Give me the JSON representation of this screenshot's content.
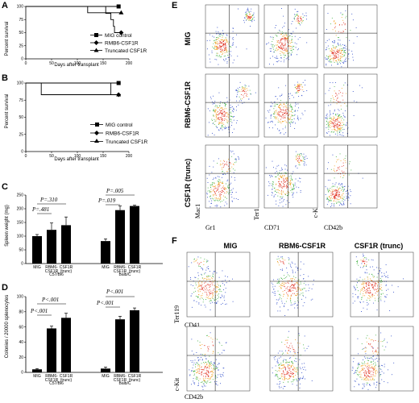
{
  "chart_data": [
    {
      "panel": "A",
      "type": "line",
      "ylabel": "Percent survival",
      "xlabel": "Days after transplant",
      "xticks": [
        0,
        50,
        100,
        150,
        200
      ],
      "yticks": [
        0,
        25,
        50,
        75,
        100
      ],
      "xlim": [
        0,
        200
      ],
      "ylim": [
        0,
        100
      ],
      "series": [
        {
          "name": "MIG control",
          "marker": "square",
          "points": [
            [
              0,
              100
            ],
            [
              180,
              100
            ]
          ]
        },
        {
          "name": "RMB6-CSF1R",
          "marker": "diamond",
          "points": [
            [
              0,
              100
            ],
            [
              155,
              100
            ],
            [
              155,
              87
            ],
            [
              165,
              87
            ],
            [
              165,
              75
            ],
            [
              170,
              75
            ],
            [
              170,
              62
            ],
            [
              172,
              62
            ],
            [
              172,
              50
            ],
            [
              185,
              50
            ]
          ]
        },
        {
          "name": "Truncated CSF1R",
          "marker": "triangle",
          "points": [
            [
              0,
              100
            ],
            [
              120,
              100
            ],
            [
              120,
              88
            ],
            [
              185,
              88
            ]
          ]
        }
      ]
    },
    {
      "panel": "B",
      "type": "line",
      "ylabel": "Percent survival",
      "xlabel": "Days after transplant",
      "xticks": [
        0,
        50,
        100,
        150,
        200
      ],
      "yticks": [
        0,
        25,
        50,
        75,
        100
      ],
      "xlim": [
        0,
        200
      ],
      "ylim": [
        0,
        100
      ],
      "series": [
        {
          "name": "MIG control",
          "marker": "square",
          "points": [
            [
              0,
              100
            ],
            [
              180,
              100
            ]
          ]
        },
        {
          "name": "RMB6-CSF1R",
          "marker": "diamond",
          "points": [
            [
              0,
              100
            ],
            [
              165,
              100
            ],
            [
              165,
              83
            ],
            [
              180,
              83
            ]
          ]
        },
        {
          "name": "Truncated CSF1R",
          "marker": "triangle",
          "points": [
            [
              0,
              100
            ],
            [
              30,
              100
            ],
            [
              30,
              83
            ],
            [
              180,
              83
            ]
          ]
        }
      ]
    },
    {
      "panel": "C",
      "type": "bar",
      "ylabel": "Spleen weight (mg)",
      "yticks": [
        0,
        50,
        100,
        150,
        200,
        250
      ],
      "ylim": [
        0,
        250
      ],
      "groups": [
        "C57/Bl6",
        "Balb/C"
      ],
      "categories": [
        "MIG",
        "RBM6-CSF1R",
        "CSF1R (trunc)"
      ],
      "series": [
        {
          "group": "C57/Bl6",
          "values": [
            100,
            123,
            140
          ],
          "errors": [
            6,
            25,
            30
          ]
        },
        {
          "group": "Balb/C",
          "values": [
            82,
            195,
            210
          ],
          "errors": [
            8,
            15,
            3
          ]
        }
      ],
      "annotations": [
        "P=.310",
        "P=.481",
        "P=.005",
        "P=.019"
      ]
    },
    {
      "panel": "D",
      "type": "bar",
      "ylabel": "Colonies / 20000 splenocytes",
      "yticks": [
        0,
        20,
        40,
        60,
        80,
        100
      ],
      "ylim": [
        0,
        100
      ],
      "groups": [
        "C57/Bl6",
        "Balb/C"
      ],
      "categories": [
        "MIG",
        "RBM6-CSF1R",
        "CSF1R (trunc)"
      ],
      "series": [
        {
          "group": "C57/Bl6",
          "values": [
            4,
            58,
            72
          ],
          "errors": [
            1,
            3,
            6
          ]
        },
        {
          "group": "Balb/C",
          "values": [
            5,
            70,
            82
          ],
          "errors": [
            2,
            4,
            3
          ]
        }
      ],
      "annotations": [
        "P<.001",
        "P<.001",
        "P<.001",
        "P<.001"
      ]
    }
  ],
  "panels": {
    "A": "A",
    "B": "B",
    "C": "C",
    "D": "D",
    "E": "E",
    "F": "F"
  },
  "labels": {
    "percent_survival": "Percent survival",
    "days_after": "Days after transplant",
    "spleen_weight": "Spleen weight (mg)",
    "colonies": "Colonies / 20000 splenocytes",
    "leg_mig": "MIG control",
    "leg_rmb6": "RMB6-CSF1R",
    "leg_trunc": "Truncated CSF1R",
    "c57": "C57/Bl6",
    "balbc": "Balb/C",
    "cat_mig": "MIG",
    "cat_rbm6_1": "RBM6-",
    "cat_rbm6_2": "CSF1R",
    "cat_trunc_1": "CSF1R",
    "cat_trunc_2": "(trunc)"
  },
  "pvalues": {
    "c1": "P=.310",
    "c2": "P=.481",
    "c3": "P=.005",
    "c4": "P=.019",
    "d1": "P<.001",
    "d2": "P<.001",
    "d3": "P<.001",
    "d4": "P<.001"
  },
  "panelE": {
    "rows": [
      "MIG",
      "RBM6-CSF1R",
      "CSF1R (trunc)"
    ],
    "markers": {
      "y1": "Mac1",
      "x1": "Gr1",
      "y2": "Ter119",
      "x2": "CD71",
      "y3": "c-Kit",
      "x3": "CD42b"
    }
  },
  "panelF": {
    "cols": [
      "MIG",
      "RBM6-CSF1R",
      "CSF1R (trunc)"
    ],
    "markers": {
      "y1": "Ter119",
      "x1": "CD41",
      "y2": "c-Kit",
      "x2": "CD42b"
    }
  }
}
